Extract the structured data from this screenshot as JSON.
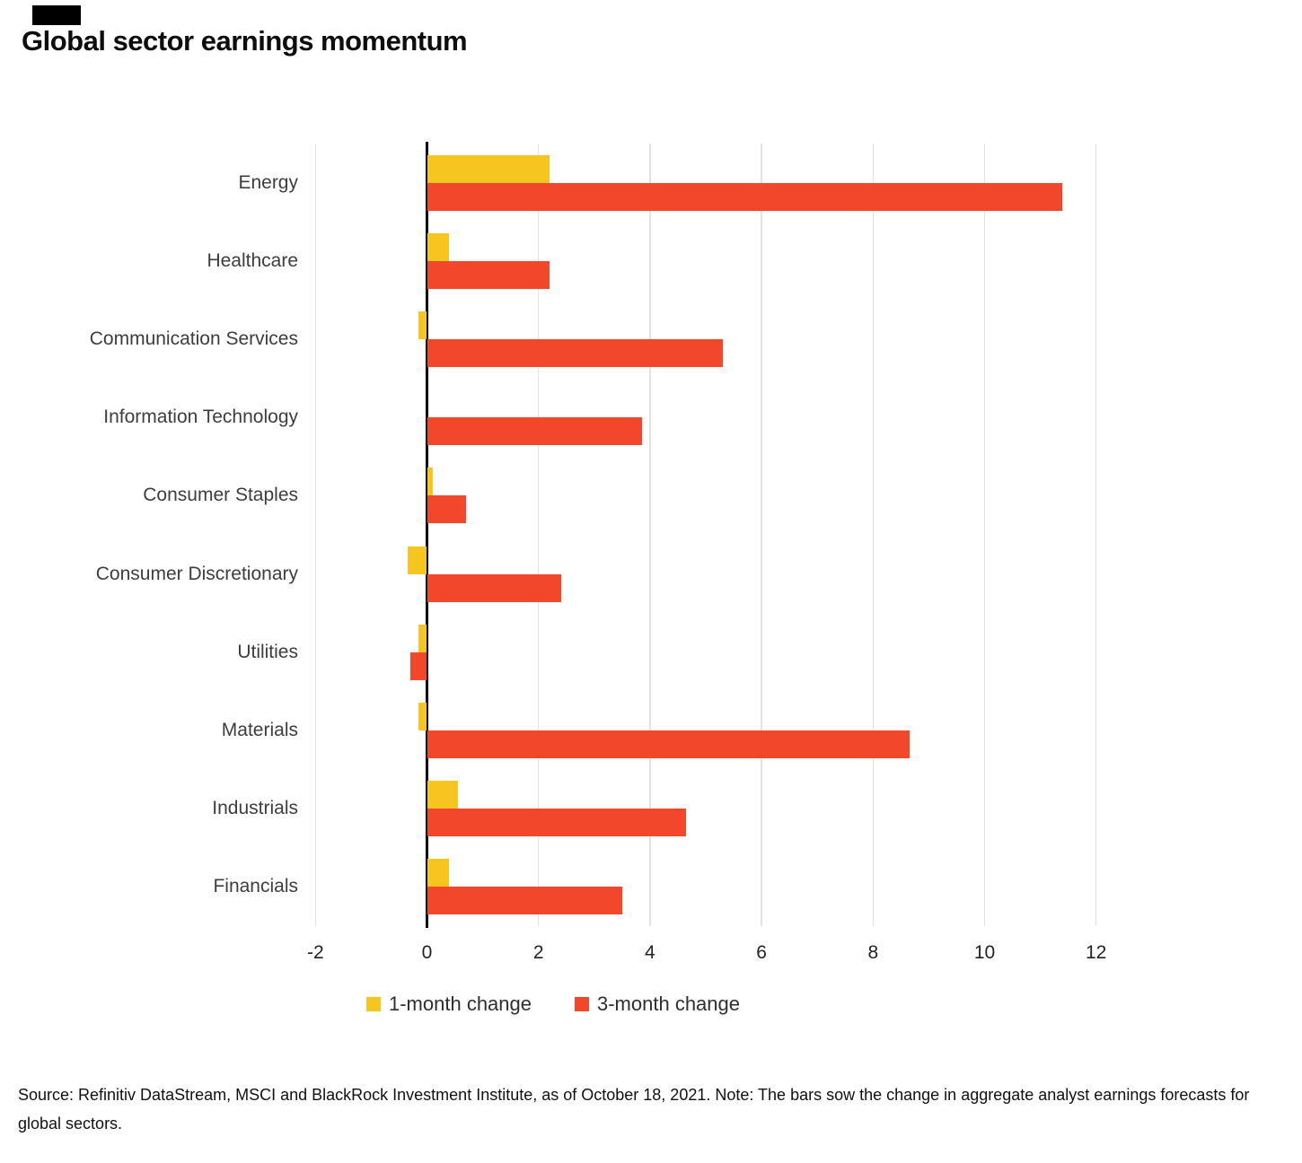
{
  "title": "Global sector earnings momentum",
  "chart_data": {
    "type": "bar",
    "orientation": "horizontal",
    "title": "Global sector earnings momentum",
    "categories": [
      "Energy",
      "Healthcare",
      "Communication Services",
      "Information Technology",
      "Consumer Staples",
      "Consumer Discretionary",
      "Utilities",
      "Materials",
      "Industrials",
      "Financials"
    ],
    "series": [
      {
        "name": "1-month change",
        "color": "#F6C51F",
        "values": [
          2.2,
          0.4,
          -0.15,
          0,
          0.1,
          -0.35,
          -0.15,
          -0.15,
          0.55,
          0.4
        ]
      },
      {
        "name": "3-month change",
        "color": "#F2472B",
        "values": [
          11.4,
          2.2,
          5.3,
          3.85,
          0.7,
          2.4,
          -0.3,
          8.65,
          4.65,
          3.5
        ]
      }
    ],
    "xlabel": "",
    "ylabel": "",
    "xlim": [
      -2,
      12.5
    ],
    "xticks": [
      -2,
      0,
      2,
      4,
      6,
      8,
      10,
      12
    ],
    "grid": true,
    "legend_position": "bottom",
    "zero_axis_color": "#000000",
    "gridline_color": "#e3e3e3"
  },
  "source_note": "Source: Refinitiv DataStream, MSCI and BlackRock Investment Institute, as of October 18, 2021. Note: The bars sow the change in aggregate analyst earnings forecasts for global sectors."
}
